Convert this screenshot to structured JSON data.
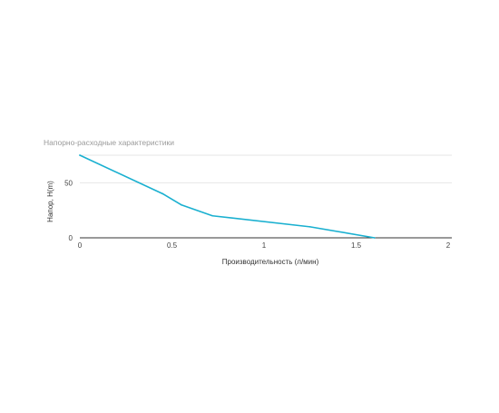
{
  "chart_data": {
    "type": "line",
    "title": "Напорно-расходные характеристики",
    "xlabel": "Производительность (л/мин)",
    "ylabel": "Напор, Н(m)",
    "xlim": [
      0,
      2
    ],
    "ylim": [
      0,
      75
    ],
    "x_ticks": [
      0,
      0.5,
      1,
      1.5,
      2
    ],
    "x_tick_labels": [
      "0",
      "0.5",
      "1",
      "1.5",
      "2"
    ],
    "y_ticks": [
      0,
      50
    ],
    "y_tick_labels": [
      "0",
      "50"
    ],
    "grid": true,
    "legend": "none",
    "series": [
      {
        "color": "#1ab0d0",
        "points": [
          {
            "x": 0,
            "y": 75
          },
          {
            "x": 0.45,
            "y": 40
          },
          {
            "x": 0.55,
            "y": 30
          },
          {
            "x": 0.72,
            "y": 20
          },
          {
            "x": 1.25,
            "y": 10
          },
          {
            "x": 1.6,
            "y": 0
          }
        ]
      }
    ]
  }
}
